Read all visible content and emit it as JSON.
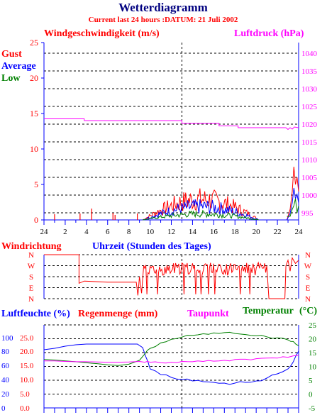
{
  "title": "Wetterdiagramm",
  "subtitle": "Current last 24 hours :DATUM: 21 Juli 2002",
  "colors": {
    "gust": "#ff0000",
    "average": "#0000ff",
    "low": "#008000",
    "pressure": "#ff00ff",
    "direction": "#ff0000",
    "humidity": "#0000ff",
    "rain": "#ff0000",
    "dewpoint": "#ff00ff",
    "temperature": "#008000",
    "axis_blue": "#0000ff",
    "axis_red": "#ff0000",
    "axis_green": "#008000"
  },
  "chart_data": [
    {
      "type": "line",
      "title": "Windgeschwindigkeit (m/s)",
      "right_title": "Luftdruck (hPa)",
      "legend": [
        "Gust",
        "Average",
        "Low"
      ],
      "left_ticks": [
        "25",
        "20",
        "15",
        "10",
        "5",
        "0"
      ],
      "right_ticks": [
        "1040",
        "1035",
        "1030",
        "1025",
        "1020",
        "1015",
        "1010",
        "1005",
        "1000",
        "995"
      ],
      "x_ticks": [
        "24",
        "2",
        "4",
        "6",
        "8",
        "10",
        "12",
        "14",
        "16",
        "18",
        "20",
        "22",
        "24"
      ],
      "ylim": [
        0,
        25
      ],
      "ylim_right": [
        993,
        1043
      ],
      "xlim": [
        0,
        24
      ],
      "x_axis_caption": "Uhrzeit (Stunden des Tages)",
      "pressure_series": {
        "name": "Luftdruck",
        "x": [
          0,
          3.8,
          3.8,
          13,
          13,
          16.5,
          16.5,
          18.3,
          18.3,
          22.8,
          23.0,
          23.2,
          23.4,
          23.6,
          24
        ],
        "values": [
          1021.5,
          1021.5,
          1021.0,
          1021.0,
          1020.2,
          1020.2,
          1019.5,
          1019.5,
          1019.0,
          1019.0,
          1018.5,
          1019.0,
          1018.6,
          1019.2,
          1019.0
        ]
      },
      "gust_events": {
        "x": [
          1.0,
          3.4,
          4.5,
          6.5,
          6.7,
          8.8
        ],
        "values": [
          0.8,
          0.9,
          1.6,
          1.0,
          0.7,
          0.9
        ]
      }
    },
    {
      "type": "line",
      "title": "Windrichtung",
      "categories_y": [
        "N",
        "W",
        "S",
        "E",
        "N"
      ],
      "xlim": [
        0,
        24
      ]
    },
    {
      "type": "line",
      "title": "Luftfeuchte (%)",
      "rain_title": "Regenmenge (mm)",
      "dewpoint_title": "Taupunkt",
      "temperature_title": "Temperatur",
      "temperature_unit": "(°C)",
      "left_ticks_humidity": [
        "100",
        "80",
        "60",
        "40",
        "20",
        "0"
      ],
      "left_ticks_rain": [
        "25.0",
        "20.0",
        "15.0",
        "10.0",
        "5.0",
        "0.0"
      ],
      "right_ticks": [
        "25",
        "20",
        "15",
        "10",
        "5",
        "0",
        "-5"
      ],
      "ylim_humidity": [
        0,
        100
      ],
      "ylim_temperature": [
        -5,
        25
      ],
      "xlim": [
        0,
        24
      ],
      "series": [
        {
          "name": "Luftfeuchte",
          "x": [
            0,
            1,
            2,
            3,
            4,
            5,
            6,
            7,
            8,
            8.8,
            9.3,
            9.6,
            10,
            11,
            12,
            13,
            14,
            15,
            16,
            17,
            18,
            19,
            20,
            21,
            22,
            23,
            23.5,
            24
          ],
          "values": [
            82,
            84,
            87,
            89,
            90,
            90,
            90,
            90,
            90,
            90,
            85,
            72,
            55,
            47,
            43,
            40,
            38,
            37,
            36,
            35,
            35,
            36,
            38,
            42,
            48,
            55,
            65,
            80
          ]
        },
        {
          "name": "Temperatur",
          "x": [
            0,
            1,
            2,
            3,
            4,
            5,
            6,
            7,
            8,
            9,
            9.5,
            10,
            11,
            12,
            13,
            14,
            15,
            16,
            17,
            18,
            19,
            20,
            21,
            22,
            23,
            23.5,
            24
          ],
          "values": [
            12.5,
            12.3,
            12.0,
            11.7,
            11.3,
            11.0,
            10.6,
            10.3,
            10.8,
            12.2,
            14.5,
            16.5,
            18.5,
            19.8,
            20.6,
            21.2,
            21.8,
            22.1,
            22.2,
            21.9,
            21.5,
            21.1,
            20.7,
            20.3,
            19.6,
            19.0,
            17.5
          ]
        },
        {
          "name": "Taupunkt",
          "x": [
            0,
            1,
            2,
            3,
            4,
            5,
            6,
            7,
            8,
            9,
            9.5,
            10,
            11,
            12,
            13,
            14,
            15,
            16,
            17,
            18,
            19,
            20,
            21,
            22,
            23,
            24
          ],
          "values": [
            12.0,
            12.0,
            11.8,
            11.7,
            11.7,
            11.6,
            11.5,
            11.5,
            11.6,
            11.8,
            11.5,
            11.5,
            11.3,
            11.5,
            11.8,
            11.7,
            11.8,
            11.9,
            12.2,
            12.5,
            12.6,
            12.8,
            13.0,
            13.0,
            13.3,
            14.0
          ]
        }
      ]
    }
  ]
}
